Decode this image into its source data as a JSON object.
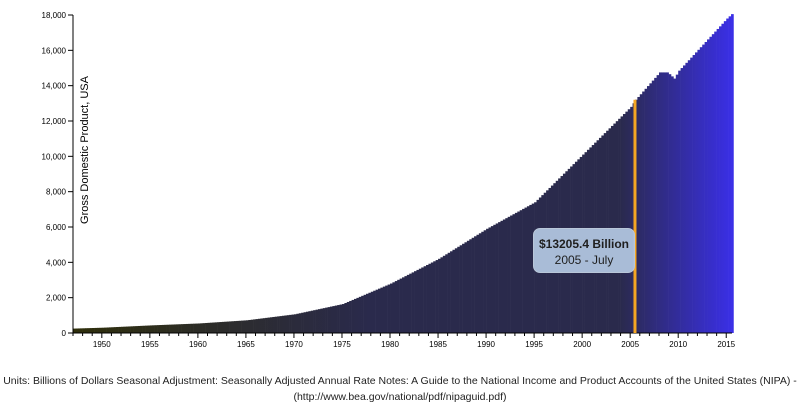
{
  "chart_data": {
    "type": "bar",
    "title": "",
    "ylabel": "Gross Domestic Product, USA",
    "xlabel": "",
    "ylim": [
      0,
      18000
    ],
    "xlim": [
      1947,
      2015.6
    ],
    "x_ticks": [
      "1950",
      "1955",
      "1960",
      "1965",
      "1970",
      "1975",
      "1980",
      "1985",
      "1990",
      "1995",
      "2000",
      "2005",
      "2010",
      "2015"
    ],
    "y_ticks": [
      "0",
      "2,000",
      "4,000",
      "6,000",
      "8,000",
      "10,000",
      "12,000",
      "14,000",
      "16,000",
      "18,000"
    ],
    "series": [
      {
        "x": [
          1947,
          1950,
          1955,
          1960,
          1965,
          1970,
          1975,
          1980,
          1985,
          1990,
          1995,
          2000,
          2005,
          2005.5,
          2008,
          2008.8,
          2009.5,
          2010,
          2015,
          2015.5
        ],
        "values": [
          250,
          300,
          430,
          540,
          720,
          1060,
          1640,
          2800,
          4200,
          5900,
          7400,
          10100,
          12800,
          13205.4,
          14750,
          14750,
          14400,
          14850,
          17800,
          18050
        ]
      }
    ],
    "colors": {
      "start": "#2e2e0a",
      "mid": "#2a2a4c",
      "end": "#3a2fe6",
      "highlight": "#f5a623"
    },
    "highlight": {
      "x": 2005.5,
      "value": 13205.4
    }
  },
  "tooltip": {
    "value": "$13205.4 Billion",
    "date": "2005 - July"
  },
  "footnote": {
    "line1": "Units: Billions of Dollars Seasonal Adjustment: Seasonally Adjusted Annual Rate Notes: A Guide to the National Income and Product Accounts of the United States (NIPA) -",
    "line2": "(http://www.bea.gov/national/pdf/nipaguid.pdf)"
  }
}
